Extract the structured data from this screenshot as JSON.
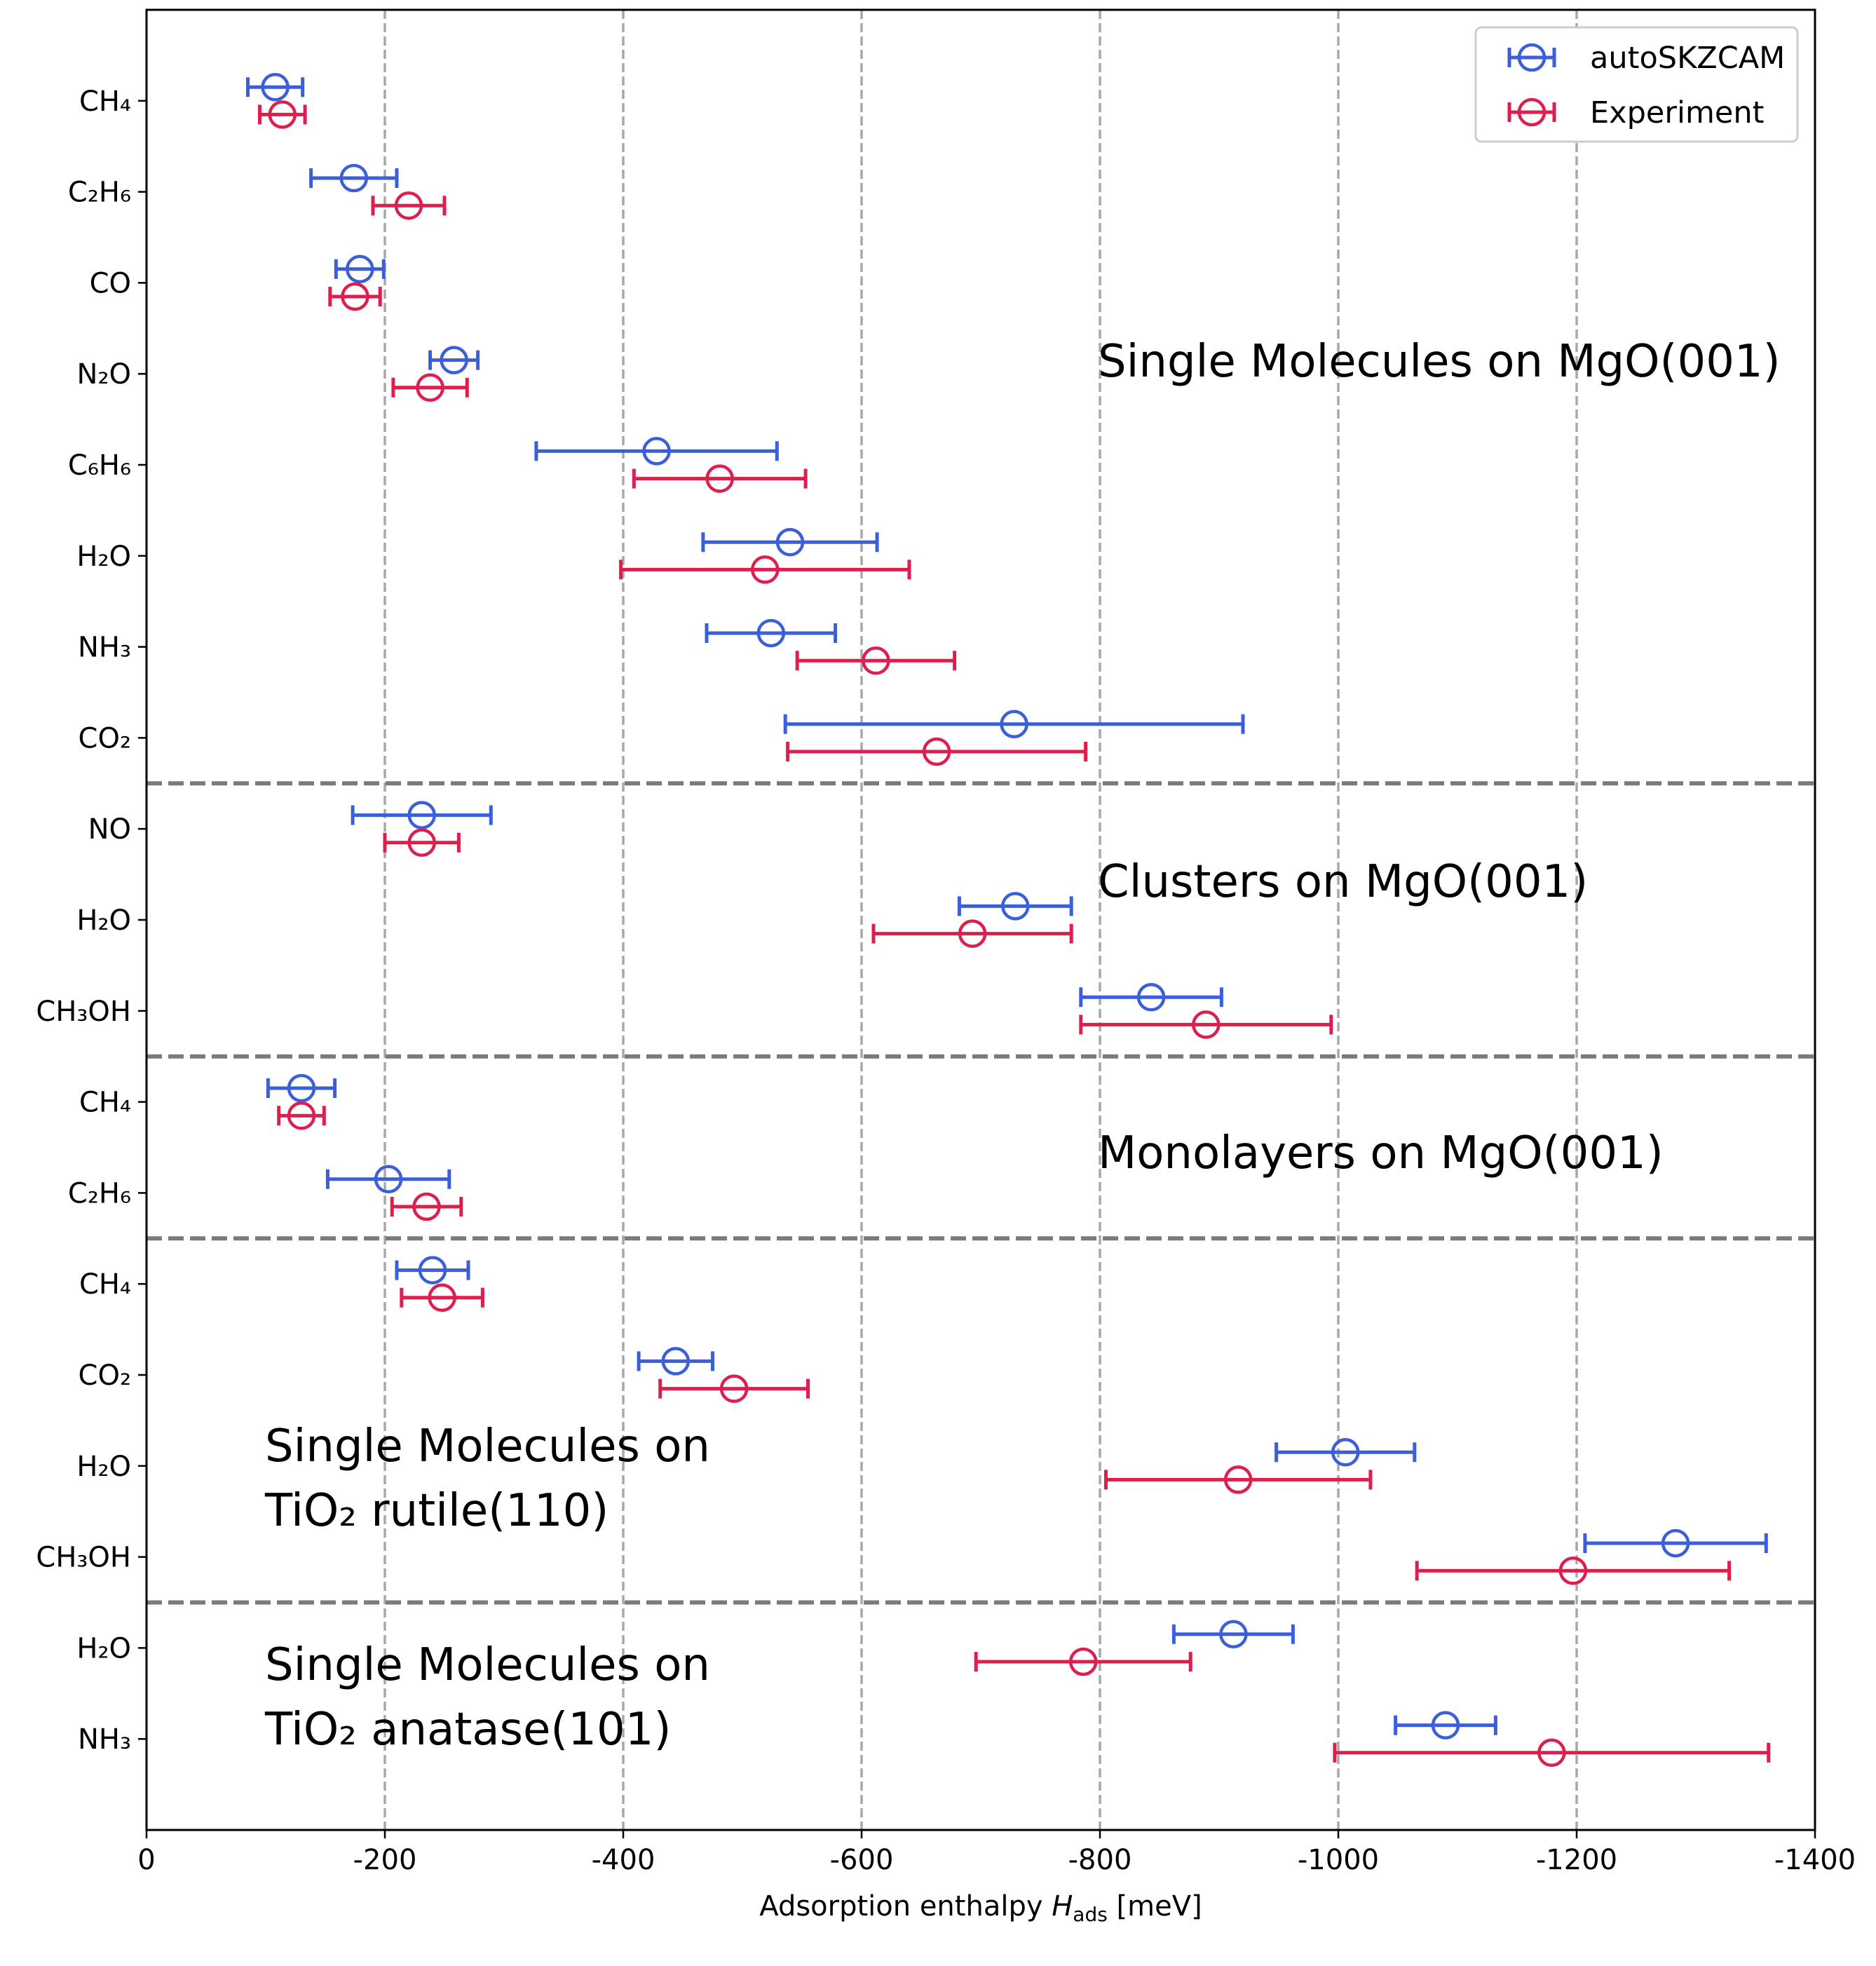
{
  "chart_data": {
    "type": "errorbar",
    "orientation": "horizontal",
    "xlabel": {
      "text": "Adsorption enthalpy ",
      "symbol": "H",
      "subscript": "ads",
      "unit": " [meV]"
    },
    "xlim": [
      0,
      -1400
    ],
    "xticks": [
      0,
      -200,
      -400,
      -600,
      -800,
      -1000,
      -1200,
      -1400
    ],
    "grid": true,
    "legend": "upper right",
    "categories": [
      "CH₄",
      "C₂H₆",
      "CO",
      "N₂O",
      "C₆H₆",
      "H₂O",
      "NH₃",
      "CO₂",
      "NO",
      "H₂O",
      "CH₃OH",
      "CH₄",
      "C₂H₆",
      "CH₄",
      "CO₂",
      "H₂O",
      "CH₃OH",
      "H₂O",
      "NH₃"
    ],
    "series": [
      {
        "name": "autoSKZCAM",
        "color": "#3b5fd9",
        "values": [
          -108,
          -174,
          -179,
          -258,
          -428,
          -540,
          -524,
          -728,
          -231,
          -729,
          -843,
          -130,
          -203,
          -240,
          -444,
          -1006,
          -1283,
          -912,
          -1090
        ],
        "errors": [
          23,
          36,
          20,
          20,
          101,
          73,
          54,
          192,
          58,
          47,
          59,
          28,
          51,
          30,
          31,
          58,
          76,
          50,
          42
        ]
      },
      {
        "name": "Experiment",
        "color": "#dc1f4d",
        "values": [
          -114,
          -220,
          -175,
          -238,
          -481,
          -519,
          -612,
          -663,
          -231,
          -693,
          -889,
          -130,
          -235,
          -248,
          -493,
          -916,
          -1197,
          -786,
          -1179
        ],
        "errors": [
          19,
          30,
          21,
          31,
          72,
          121,
          66,
          125,
          31,
          83,
          105,
          19,
          29,
          34,
          62,
          111,
          131,
          90,
          182
        ]
      }
    ],
    "annotations": [
      [
        "Single Molecules on MgO(001)"
      ],
      [
        "Clusters on MgO(001)"
      ],
      [
        "Monolayers on MgO(001)"
      ],
      [
        "Single Molecules on",
        "TiO₂ rutile(110)"
      ],
      [
        "Single Molecules on",
        "TiO₂ anatase(101)"
      ]
    ]
  }
}
